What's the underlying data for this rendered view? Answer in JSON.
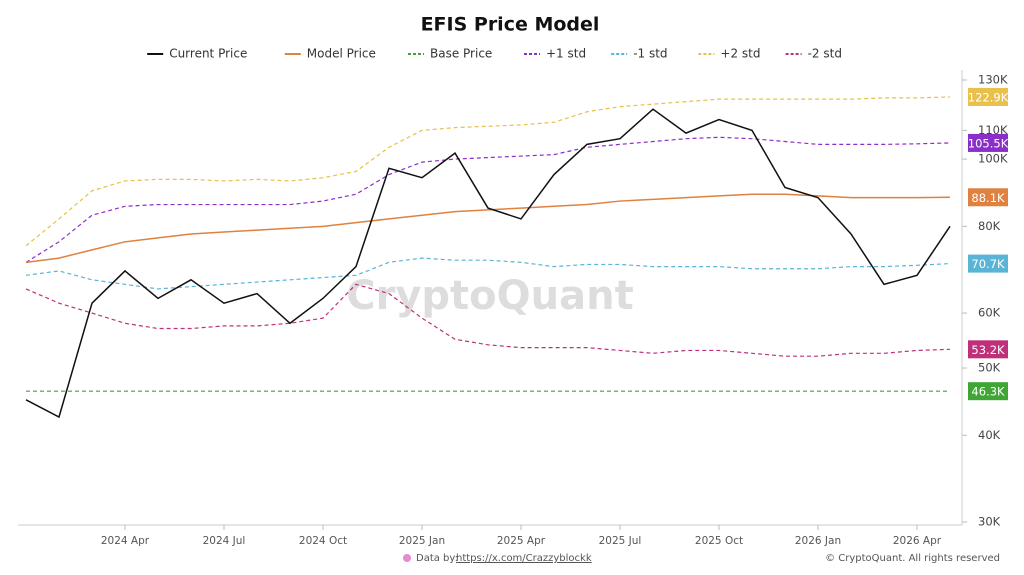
{
  "chart_data": {
    "type": "line",
    "title": "EFIS Price Model",
    "watermark": "CryptoQuant",
    "source_label": "Data by:",
    "source_url": "https://x.com/Crazzyblockk",
    "copyright": "© CryptoQuant. All rights reserved",
    "log_scale": true,
    "grid": false,
    "legend": "top",
    "x": [
      "2024 Jan",
      "2024 Feb",
      "2024 Mar",
      "2024 Apr",
      "2024 May",
      "2024 Jun",
      "2024 Jul",
      "2024 Aug",
      "2024 Sep",
      "2024 Oct",
      "2024 Nov",
      "2024 Dec",
      "2025 Jan",
      "2025 Feb",
      "2025 Mar",
      "2025 Apr",
      "2025 May",
      "2025 Jun",
      "2025 Jul",
      "2025 Aug",
      "2025 Sep",
      "2025 Oct",
      "2025 Nov",
      "2025 Dec",
      "2026 Jan",
      "2026 Feb",
      "2026 Mar",
      "2026 Apr",
      "2026 May"
    ],
    "xticks": [
      "2024 Apr",
      "2024 Jul",
      "2024 Oct",
      "2025 Jan",
      "2025 Apr",
      "2025 Jul",
      "2025 Oct",
      "2026 Jan",
      "2026 Apr"
    ],
    "ylim": [
      30000,
      130000
    ],
    "yticks": [
      {
        "value": 30000,
        "label": "30K"
      },
      {
        "value": 40000,
        "label": "40K"
      },
      {
        "value": 50000,
        "label": "50K"
      },
      {
        "value": 60000,
        "label": "60K"
      },
      {
        "value": 80000,
        "label": "80K"
      },
      {
        "value": 100000,
        "label": "100K"
      },
      {
        "value": 110000,
        "label": "110K"
      },
      {
        "value": 130000,
        "label": "130K"
      }
    ],
    "series": [
      {
        "name": "Current Price",
        "color": "#111111",
        "dash": false,
        "values": [
          45000,
          42500,
          62000,
          69000,
          63000,
          67000,
          62000,
          64000,
          58000,
          63000,
          70000,
          97000,
          94000,
          102000,
          85000,
          82000,
          95000,
          105000,
          107000,
          118000,
          109000,
          114000,
          110000,
          91000,
          88000,
          78000,
          66000,
          68000,
          80000
        ]
      },
      {
        "name": "Model Price",
        "color": "#e0813f",
        "dash": false,
        "end_label": "88.1K",
        "values": [
          71000,
          72000,
          74000,
          76000,
          77000,
          78000,
          78500,
          79000,
          79500,
          80000,
          81000,
          82000,
          83000,
          84000,
          84500,
          85000,
          85500,
          86000,
          87000,
          87500,
          88000,
          88500,
          89000,
          89000,
          88500,
          88000,
          88000,
          88000,
          88100
        ]
      },
      {
        "name": "Base Price",
        "color": "#3fa535",
        "dash": true,
        "end_label": "46.3K",
        "values": [
          46300,
          46300,
          46300,
          46300,
          46300,
          46300,
          46300,
          46300,
          46300,
          46300,
          46300,
          46300,
          46300,
          46300,
          46300,
          46300,
          46300,
          46300,
          46300,
          46300,
          46300,
          46300,
          46300,
          46300,
          46300,
          46300,
          46300,
          46300,
          46300
        ]
      },
      {
        "name": "+1 std",
        "color": "#8b2fc9",
        "dash": true,
        "end_label": "105.5K",
        "values": [
          71000,
          76000,
          83000,
          85500,
          86000,
          86000,
          86000,
          86000,
          86000,
          87000,
          89000,
          95000,
          99000,
          100000,
          100500,
          101000,
          101500,
          104000,
          105000,
          106000,
          107000,
          107500,
          107000,
          106000,
          105000,
          105000,
          105000,
          105200,
          105500
        ]
      },
      {
        "name": "-1 std",
        "color": "#5ab4d6",
        "dash": true,
        "end_label": "70.7K",
        "values": [
          68000,
          69000,
          67000,
          66000,
          65000,
          65500,
          66000,
          66500,
          67000,
          67500,
          68000,
          71000,
          72000,
          71500,
          71500,
          71000,
          70000,
          70500,
          70500,
          70000,
          70000,
          70000,
          69500,
          69500,
          69500,
          70000,
          70000,
          70300,
          70700
        ]
      },
      {
        "name": "+2 std",
        "color": "#e8c04a",
        "dash": true,
        "end_label": "122.9K",
        "values": [
          75000,
          82000,
          90000,
          93000,
          93500,
          93500,
          93000,
          93500,
          93000,
          94000,
          96000,
          104000,
          110000,
          111000,
          111500,
          112000,
          113000,
          117000,
          119000,
          120000,
          121000,
          122000,
          122000,
          122000,
          122000,
          122000,
          122500,
          122500,
          122900
        ]
      },
      {
        "name": "-2 std",
        "color": "#c0307a",
        "dash": true,
        "end_label": "53.2K",
        "values": [
          65000,
          62000,
          60000,
          58000,
          57000,
          57000,
          57500,
          57500,
          58000,
          59000,
          66000,
          64000,
          59000,
          55000,
          54000,
          53500,
          53500,
          53500,
          53000,
          52500,
          53000,
          53000,
          52500,
          52000,
          52000,
          52500,
          52500,
          53000,
          53200
        ]
      }
    ]
  }
}
